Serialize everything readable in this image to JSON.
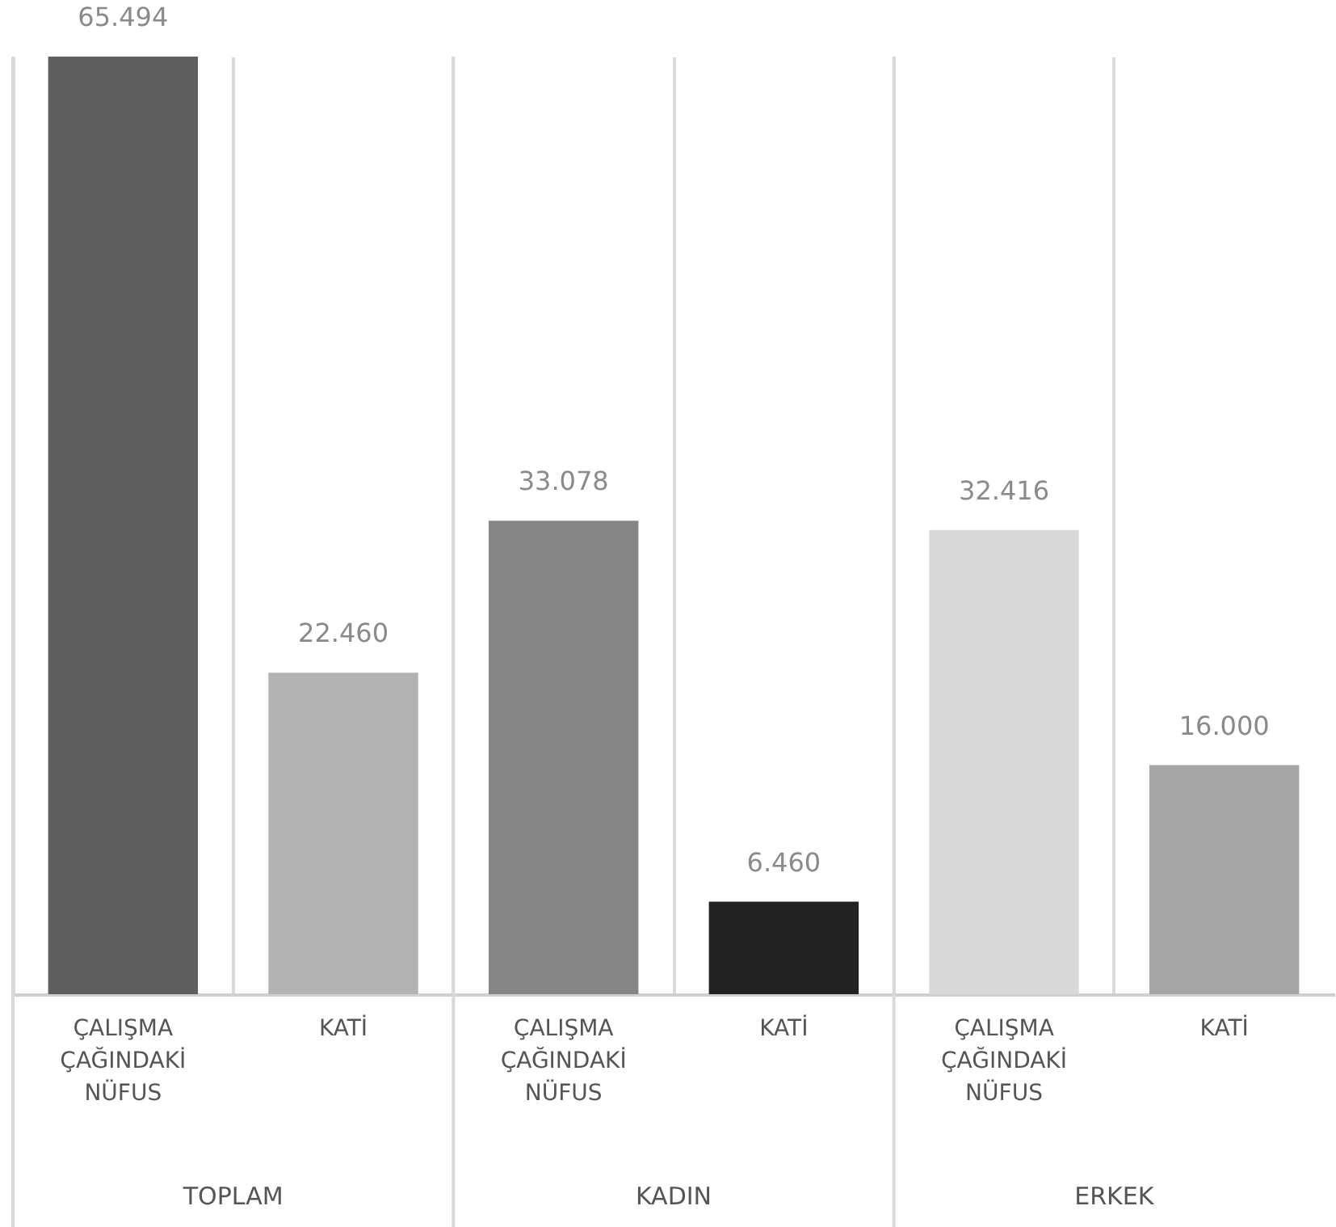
{
  "chart_data": {
    "type": "bar",
    "categories": [
      "ÇALIŞMA ÇAĞINDAKİ NÜFUS",
      "KATİ",
      "ÇALIŞMA ÇAĞINDAKİ NÜFUS",
      "KATİ",
      "ÇALIŞMA ÇAĞINDAKİ NÜFUS",
      "KATİ"
    ],
    "values": [
      65494,
      22460,
      33078,
      6460,
      32416,
      16000
    ],
    "colors": [
      "#5f5f5f",
      "#b2b2b2",
      "#858585",
      "#222222",
      "#d9d9d9",
      "#a5a5a5"
    ],
    "value_labels": [
      "65.494",
      "22.460",
      "33.078",
      "6.460",
      "32.416",
      "16.000"
    ],
    "annotations": [
      "TOPLAM",
      "KADIN",
      "ERKEK"
    ],
    "grid": "x"
  }
}
